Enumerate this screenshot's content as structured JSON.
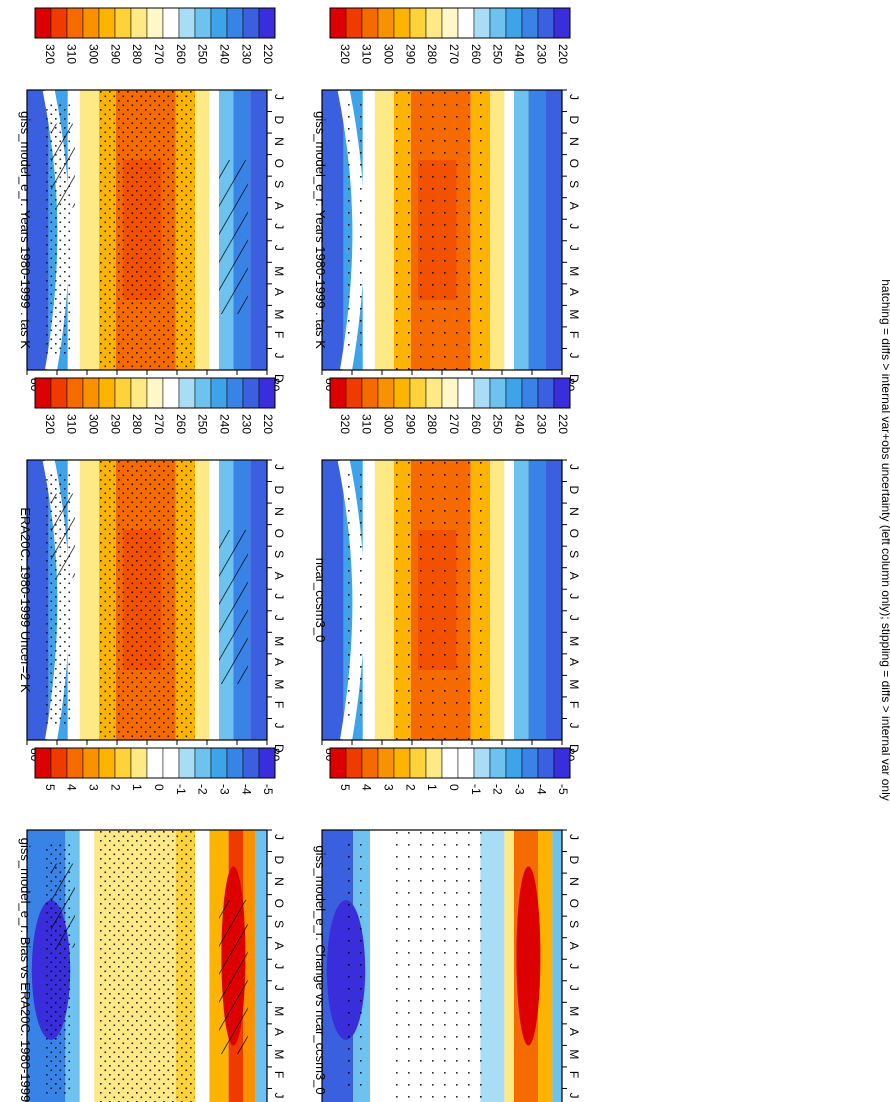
{
  "footnote": "hatching = diffs > internal var+obs uncertainty (left column only); stippling = diffs > internal var only",
  "colors": {
    "temp_scale": [
      "#dd0000",
      "#ef3a00",
      "#f56b00",
      "#f99200",
      "#fcb400",
      "#fdd23a",
      "#fde985",
      "#fef8c8",
      "#ffffff",
      "#a9ddf5",
      "#6dc2f0",
      "#3fa3ea",
      "#3a83e6",
      "#3a5fdf",
      "#3a2edc"
    ],
    "diff_scale": [
      "#dd0000",
      "#ef3a00",
      "#f56b00",
      "#f99200",
      "#fcb400",
      "#fdd23a",
      "#fde985",
      "#ffffff",
      "#ffffff",
      "#a9ddf5",
      "#6dc2f0",
      "#3fa3ea",
      "#3a83e6",
      "#3a5fdf",
      "#3a2edc"
    ]
  },
  "months": [
    "J",
    "F",
    "M",
    "A",
    "M",
    "J",
    "J",
    "A",
    "S",
    "O",
    "N",
    "D",
    "J"
  ],
  "lat_labels": [
    "80",
    "60",
    "°N",
    "20",
    "0",
    "20",
    "°S",
    "60",
    "80"
  ],
  "start_label": "D",
  "panels": [
    {
      "title": "giss_model_e_r: Years 1980-1999 : tas K",
      "colorbar": [
        "320",
        "310",
        "300",
        "290",
        "280",
        "270",
        "260",
        "250",
        "240",
        "230",
        "220"
      ],
      "kind": "temp",
      "hatch": true,
      "stipple": "dense"
    },
    {
      "title": "giss_model_e_r: Years 1980-1999 : tas K",
      "colorbar": [
        "320",
        "310",
        "300",
        "290",
        "280",
        "270",
        "260",
        "250",
        "240",
        "230",
        "220"
      ],
      "kind": "temp",
      "hatch": false,
      "stipple": "sparse"
    },
    {
      "title": "ERA20C: 1980-1999 Uncer=2 K",
      "colorbar": [
        "320",
        "310",
        "300",
        "290",
        "280",
        "270",
        "260",
        "250",
        "240",
        "230",
        "220"
      ],
      "kind": "temp",
      "hatch": true,
      "stipple": "dense"
    },
    {
      "title": "ncar_ccsm3_0",
      "colorbar": [
        "320",
        "310",
        "300",
        "290",
        "280",
        "270",
        "260",
        "250",
        "240",
        "230",
        "220"
      ],
      "kind": "temp",
      "hatch": false,
      "stipple": "sparse"
    },
    {
      "title": "giss_model_e_r: Bias vs ERA20C: 1980-1999",
      "colorbar": [
        "5",
        "4",
        "3",
        "2",
        "1",
        "0",
        "-1",
        "-2",
        "-3",
        "-4",
        "-5"
      ],
      "kind": "bias",
      "hatch": true,
      "stipple": "dense"
    },
    {
      "title": "giss_model_e_r: Change vs ncar_ccsm3_0",
      "colorbar": [
        "5",
        "4",
        "3",
        "2",
        "1",
        "0",
        "-1",
        "-2",
        "-3",
        "-4",
        "-5"
      ],
      "kind": "change",
      "hatch": false,
      "stipple": "sparse"
    }
  ],
  "chart_data": [
    {
      "type": "heatmap",
      "title": "giss_model_e_r: Years 1980-1999 : tas K",
      "x": "latitude (80N to 80S)",
      "y": "month (Dec to Jan)",
      "colorbar_range": [
        220,
        320
      ],
      "units": "K"
    },
    {
      "type": "heatmap",
      "title": "giss_model_e_r: Years 1980-1999 : tas K",
      "x": "latitude (80N to 80S)",
      "y": "month (Dec to Jan)",
      "colorbar_range": [
        220,
        320
      ],
      "units": "K"
    },
    {
      "type": "heatmap",
      "title": "ERA20C: 1980-1999 Uncer=2 K",
      "x": "latitude (80N to 80S)",
      "y": "month (Dec to Jan)",
      "colorbar_range": [
        220,
        320
      ],
      "units": "K"
    },
    {
      "type": "heatmap",
      "title": "ncar_ccsm3_0",
      "x": "latitude (80N to 80S)",
      "y": "month (Dec to Jan)",
      "colorbar_range": [
        220,
        320
      ],
      "units": "K"
    },
    {
      "type": "heatmap",
      "title": "giss_model_e_r: Bias vs ERA20C: 1980-1999",
      "x": "latitude (80N to 80S)",
      "y": "month (Dec to Jan)",
      "colorbar_range": [
        -5,
        5
      ],
      "units": "K"
    },
    {
      "type": "heatmap",
      "title": "giss_model_e_r: Change vs ncar_ccsm3_0",
      "x": "latitude (80N to 80S)",
      "y": "month (Dec to Jan)",
      "colorbar_range": [
        -5,
        5
      ],
      "units": "K"
    }
  ]
}
